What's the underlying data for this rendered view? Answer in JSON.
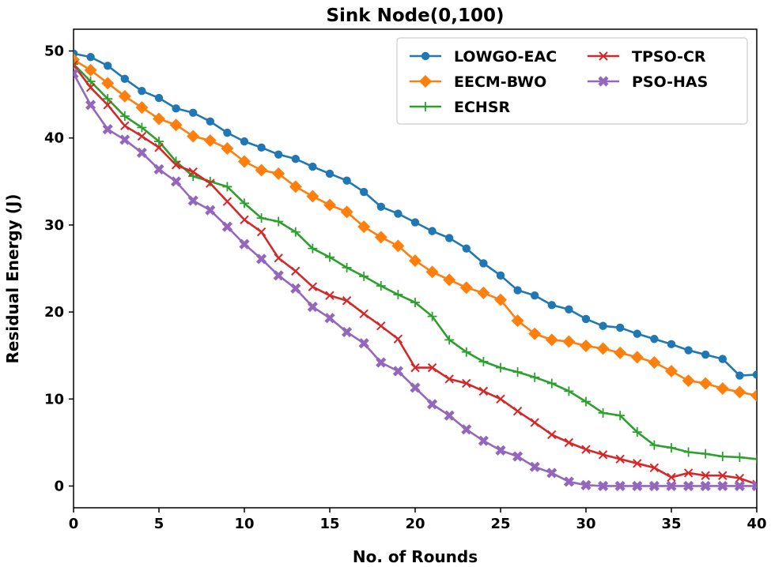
{
  "chart_data": {
    "type": "line",
    "title": "Sink Node(0,100)",
    "xlabel": "No. of Rounds",
    "ylabel": "Residual Energy (J)",
    "xlim": [
      0,
      40
    ],
    "ylim": [
      -2.5,
      52.5
    ],
    "xticks": [
      0,
      5,
      10,
      15,
      20,
      25,
      30,
      35,
      40
    ],
    "yticks": [
      0,
      10,
      20,
      30,
      40,
      50
    ],
    "grid": false,
    "legend_position": "top-right",
    "x": [
      0,
      1,
      2,
      3,
      4,
      5,
      6,
      7,
      8,
      9,
      10,
      11,
      12,
      13,
      14,
      15,
      16,
      17,
      18,
      19,
      20,
      21,
      22,
      23,
      24,
      25,
      26,
      27,
      28,
      29,
      30,
      31,
      32,
      33,
      34,
      35,
      36,
      37,
      38,
      39,
      40
    ],
    "series": [
      {
        "name": "LOWGO-EAC",
        "color": "#1f77b4",
        "marker": "circle",
        "values": [
          49.7,
          49.3,
          48.3,
          46.8,
          45.4,
          44.6,
          43.4,
          42.9,
          41.9,
          40.6,
          39.6,
          38.9,
          38.1,
          37.6,
          36.7,
          35.9,
          35.1,
          33.8,
          32.1,
          31.3,
          30.3,
          29.3,
          28.5,
          27.3,
          25.6,
          24.2,
          22.5,
          21.9,
          20.8,
          20.3,
          19.2,
          18.4,
          18.2,
          17.5,
          16.9,
          16.3,
          15.6,
          15.1,
          14.6,
          12.7,
          12.8
        ]
      },
      {
        "name": "EECM-BWO",
        "color": "#ff7f0e",
        "marker": "diamond",
        "values": [
          49.0,
          47.8,
          46.3,
          44.8,
          43.5,
          42.2,
          41.5,
          40.2,
          39.7,
          38.8,
          37.3,
          36.3,
          35.9,
          34.4,
          33.3,
          32.3,
          31.5,
          29.8,
          28.6,
          27.6,
          25.9,
          24.6,
          23.7,
          22.8,
          22.2,
          21.4,
          19.0,
          17.5,
          16.8,
          16.6,
          16.1,
          15.8,
          15.3,
          14.8,
          14.2,
          13.2,
          12.1,
          11.8,
          11.2,
          10.8,
          10.4
        ]
      },
      {
        "name": "ECHSR",
        "color": "#2ca02c",
        "marker": "plus",
        "values": [
          48.5,
          46.5,
          44.5,
          42.5,
          41.2,
          39.6,
          37.3,
          35.6,
          35.0,
          34.4,
          32.5,
          30.8,
          30.4,
          29.2,
          27.3,
          26.3,
          25.1,
          24.1,
          23.0,
          22.0,
          21.1,
          19.5,
          16.8,
          15.4,
          14.3,
          13.6,
          13.1,
          12.5,
          11.8,
          10.9,
          9.7,
          8.4,
          8.1,
          6.2,
          4.7,
          4.4,
          3.9,
          3.7,
          3.4,
          3.3,
          3.1
        ]
      },
      {
        "name": "TPSO-CR",
        "color": "#d62728",
        "marker": "x",
        "values": [
          48.4,
          45.8,
          43.8,
          41.4,
          40.2,
          38.9,
          36.9,
          36.1,
          34.8,
          32.7,
          30.6,
          29.2,
          26.2,
          24.7,
          22.9,
          21.9,
          21.3,
          19.8,
          18.4,
          16.9,
          13.6,
          13.6,
          12.3,
          11.8,
          10.9,
          10.0,
          8.6,
          7.3,
          5.9,
          5.0,
          4.2,
          3.6,
          3.1,
          2.6,
          2.1,
          1.0,
          1.5,
          1.2,
          1.2,
          0.9,
          0.2
        ]
      },
      {
        "name": "PSO-HAS",
        "color": "#9467bd",
        "marker": "filled-x",
        "values": [
          47.4,
          43.8,
          41.0,
          39.8,
          38.3,
          36.4,
          35.0,
          32.8,
          31.7,
          29.8,
          27.8,
          26.1,
          24.2,
          22.7,
          20.6,
          19.3,
          17.7,
          16.4,
          14.2,
          13.2,
          11.3,
          9.4,
          8.1,
          6.5,
          5.2,
          4.1,
          3.4,
          2.2,
          1.5,
          0.5,
          0.1,
          0.0,
          0.0,
          0.0,
          0.0,
          0.0,
          0.0,
          0.0,
          0.0,
          0.0,
          0.0
        ]
      }
    ]
  }
}
